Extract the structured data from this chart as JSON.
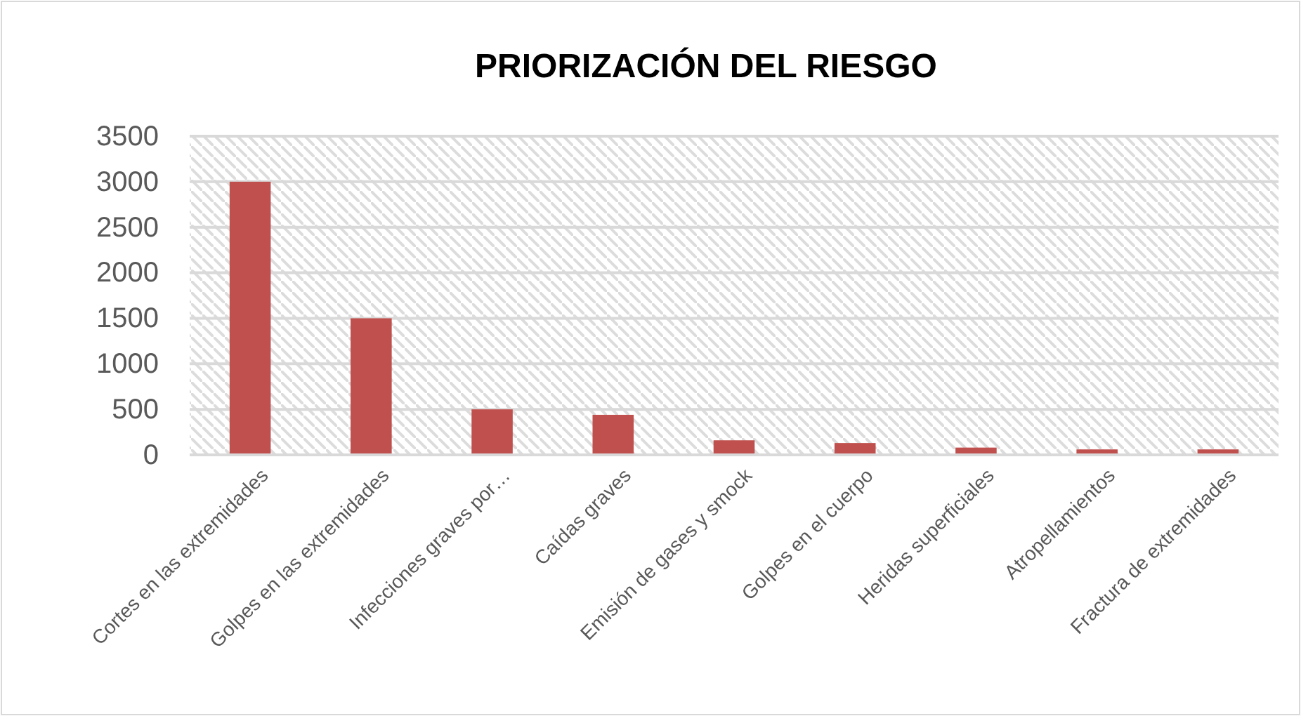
{
  "chart_data": {
    "type": "bar",
    "title": "PRIORIZACIÓN DEL RIESGO",
    "categories": [
      "Cortes en las extremidades",
      "Golpes en las extremidades",
      "Infecciones graves por…",
      "Caídas graves",
      "Emisión de gases y smock",
      "Golpes en el cuerpo",
      "Heridas superficiales",
      "Atropellamientos",
      "Fractura de extremidades"
    ],
    "values": [
      3000,
      1500,
      500,
      440,
      160,
      130,
      80,
      60,
      60
    ],
    "color": "#c0504d",
    "ylim": [
      0,
      3500
    ],
    "yticks": [
      0,
      500,
      1000,
      1500,
      2000,
      2500,
      3000,
      3500
    ],
    "grid": "y"
  }
}
